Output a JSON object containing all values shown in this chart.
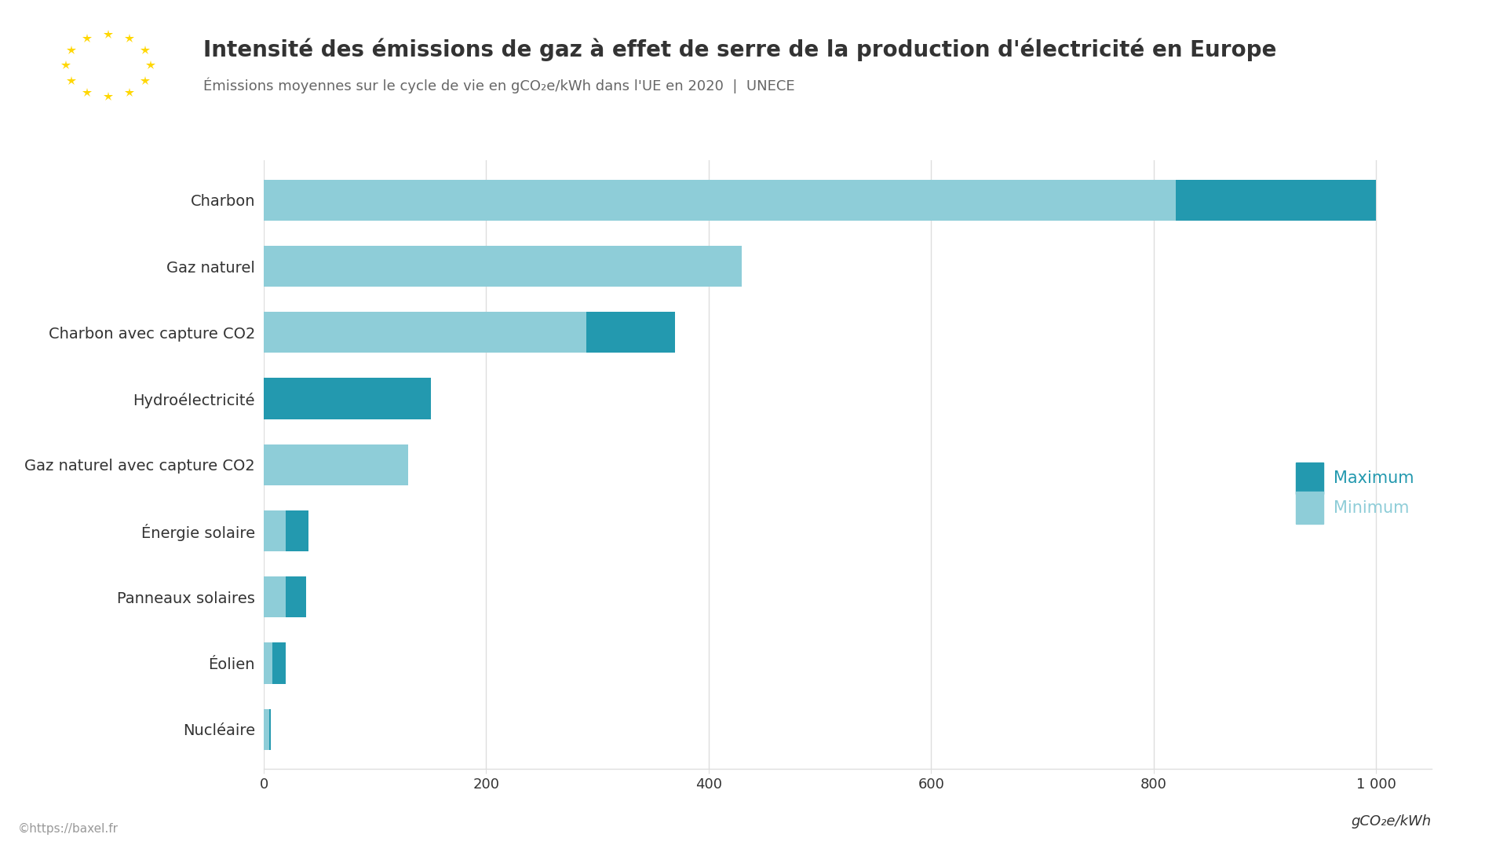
{
  "title": "Intensité des émissions de gaz à effet de serre de la production d'électricité en Europe",
  "subtitle": "Émissions moyennes sur le cycle de vie en gCO₂e/kWh dans l'UE en 2020  |  UNECE",
  "xlabel": "gCO₂e/kWh",
  "categories": [
    "Charbon",
    "Gaz naturel",
    "Charbon avec capture CO2",
    "Hydroélectricité",
    "Gaz naturel avec capture CO2",
    "Énergie solaire",
    "Panneaux solaires",
    "Éolien",
    "Nucléaire"
  ],
  "min_vals": [
    820,
    430,
    290,
    0,
    130,
    20,
    20,
    8,
    5
  ],
  "max_vals": [
    1000,
    430,
    370,
    150,
    130,
    40,
    38,
    20,
    6
  ],
  "color_min": "#8ECDD8",
  "color_max": "#2399AF",
  "xlim_max": 1050,
  "xticks": [
    0,
    200,
    400,
    600,
    800,
    1000
  ],
  "xtick_labels": [
    "0",
    "200",
    "400",
    "600",
    "800",
    "1 000"
  ],
  "background_color": "#FFFFFF",
  "grid_color": "#DEDEDE",
  "text_color": "#333333",
  "footer": "©https://baxel.fr",
  "legend_max_label": "Maximum",
  "legend_min_label": "Minimum",
  "bar_height": 0.62,
  "flag_blue": "#3333AA",
  "flag_star_color": "#FFD700",
  "title_fontsize": 20,
  "subtitle_fontsize": 13,
  "ylabel_fontsize": 14,
  "xlabel_fontsize": 13,
  "legend_fontsize": 15
}
